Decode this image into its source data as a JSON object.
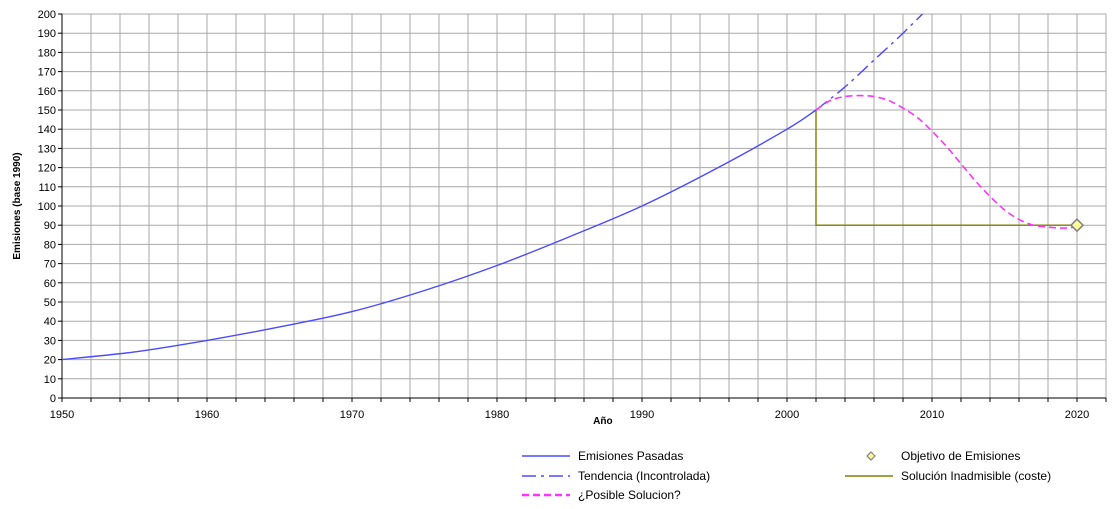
{
  "chart_data": {
    "type": "line",
    "xlabel": "Año",
    "ylabel": "Emisiones (base 1990)",
    "xlim": [
      1950,
      2022
    ],
    "ylim": [
      0,
      200
    ],
    "grid": true,
    "legend_position": "bottom-right",
    "x_ticks": [
      1950,
      1960,
      1970,
      1980,
      1990,
      2000,
      2010,
      2020
    ],
    "y_ticks": [
      0,
      10,
      20,
      30,
      40,
      50,
      60,
      70,
      80,
      90,
      100,
      110,
      120,
      130,
      140,
      150,
      160,
      170,
      180,
      190,
      200
    ],
    "series": [
      {
        "name": "Emisiones Pasadas",
        "color": "#4a4aff",
        "style": "solid",
        "x": [
          1950,
          1955,
          1960,
          1965,
          1970,
          1975,
          1980,
          1985,
          1990,
          1995,
          2000,
          2002
        ],
        "y": [
          20,
          24,
          30,
          37,
          45,
          56,
          69,
          84,
          100,
          119,
          140,
          150
        ]
      },
      {
        "name": "Tendencia (Incontrolada)",
        "color": "#4a4aff",
        "style": "dashdot",
        "x": [
          2002,
          2004,
          2006,
          2008,
          2010,
          2012
        ],
        "y": [
          150,
          162,
          176,
          190,
          205,
          220
        ]
      },
      {
        "name": "¿Posible Solucion?",
        "color": "#ff33ff",
        "style": "dashed",
        "x": [
          2002,
          2003,
          2004,
          2005,
          2006,
          2007,
          2008,
          2009,
          2010,
          2011,
          2012,
          2013,
          2014,
          2015,
          2016,
          2017,
          2018,
          2019,
          2020
        ],
        "y": [
          150,
          155,
          157,
          157.5,
          157,
          155,
          151,
          146,
          139,
          131,
          122,
          113,
          105,
          98,
          93,
          90,
          89,
          88.5,
          89
        ]
      },
      {
        "name": "Solución Inadmisible (coste)",
        "color": "#808000",
        "style": "solid",
        "x": [
          2002,
          2002,
          2020
        ],
        "y": [
          150,
          90,
          90
        ]
      },
      {
        "name": "Objetivo de Emisiones",
        "color": "#808080",
        "fill": "#ffff99",
        "style": "marker",
        "x": [
          2020
        ],
        "y": [
          90
        ]
      }
    ]
  }
}
